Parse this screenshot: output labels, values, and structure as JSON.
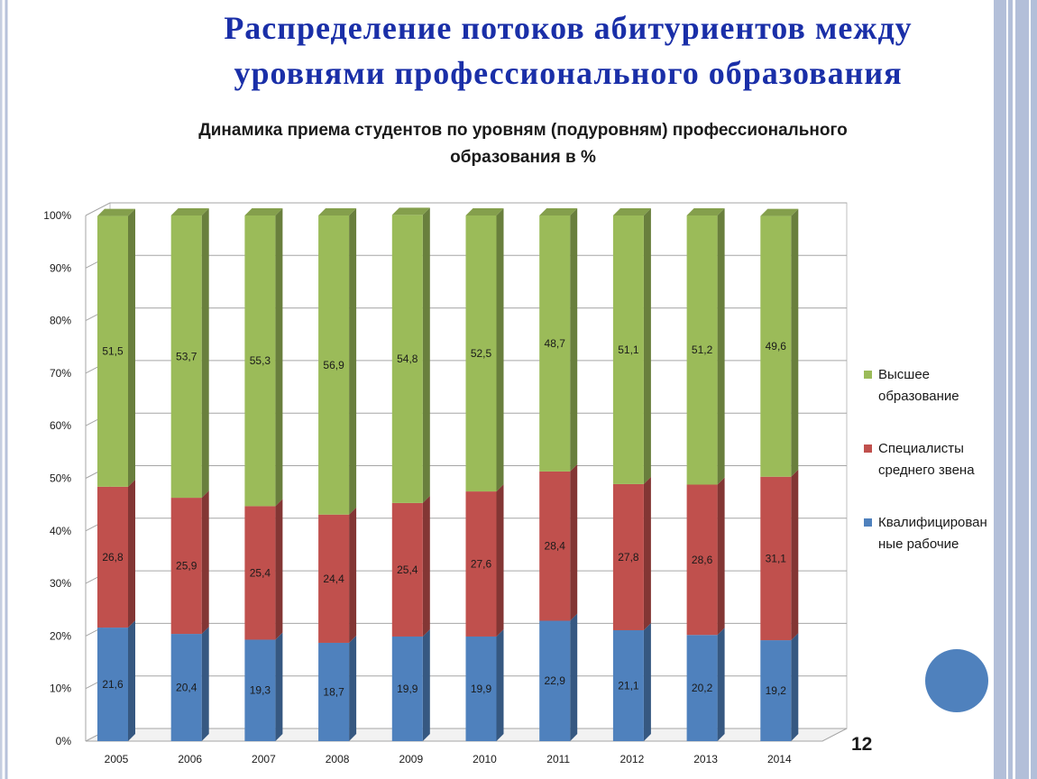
{
  "slide": {
    "title_line1": "Распределение потоков абитуриентов между",
    "title_line2": "уровнями профессионального образования",
    "page_number": "12"
  },
  "chart_data": {
    "type": "bar",
    "stacked": true,
    "three_d": true,
    "title_line1": "Динамика приема студентов по уровням (подуровням) профессионального",
    "title_line2": "образования в %",
    "categories": [
      "2005",
      "2006",
      "2007",
      "2008",
      "2009",
      "2010",
      "2011",
      "2012",
      "2013",
      "2014"
    ],
    "series": [
      {
        "name": "Квалифицированные рабочие",
        "legend_line1": "Квалифицирован",
        "legend_line2": "ные рабочие",
        "color": "#4f81bd",
        "values": [
          21.6,
          20.4,
          19.3,
          18.7,
          19.9,
          19.9,
          22.9,
          21.1,
          20.2,
          19.2
        ],
        "labels": [
          "21,6",
          "20,4",
          "19,3",
          "18,7",
          "19,9",
          "19,9",
          "22,9",
          "21,1",
          "20,2",
          "19,2"
        ]
      },
      {
        "name": "Специалисты среднего звена",
        "legend_line1": "Специалисты",
        "legend_line2": "среднего звена",
        "color": "#c0504d",
        "values": [
          26.8,
          25.9,
          25.4,
          24.4,
          25.4,
          27.6,
          28.4,
          27.8,
          28.6,
          31.1
        ],
        "labels": [
          "26,8",
          "25,9",
          "25,4",
          "24,4",
          "25,4",
          "27,6",
          "28,4",
          "27,8",
          "28,6",
          "31,1"
        ]
      },
      {
        "name": "Высшее образование",
        "legend_line1": "Высшее",
        "legend_line2": "образование",
        "color": "#9bbb59",
        "values": [
          51.5,
          53.7,
          55.3,
          56.9,
          54.8,
          52.5,
          48.7,
          51.1,
          51.2,
          49.6
        ],
        "labels": [
          "51,5",
          "53,7",
          "55,3",
          "56,9",
          "54,8",
          "52,5",
          "48,7",
          "51,1",
          "51,2",
          "49,6"
        ]
      }
    ],
    "legend_order": [
      2,
      1,
      0
    ],
    "y_ticks": [
      "0%",
      "10%",
      "20%",
      "30%",
      "40%",
      "50%",
      "60%",
      "70%",
      "80%",
      "90%",
      "100%"
    ],
    "ylim": [
      0,
      100
    ],
    "grid": true,
    "legend_position": "right"
  }
}
